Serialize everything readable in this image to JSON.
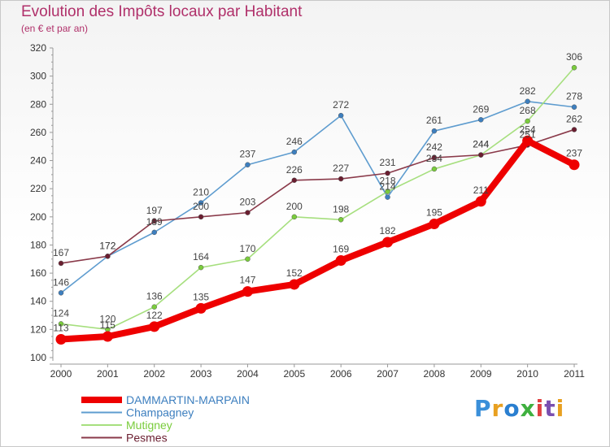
{
  "header": {
    "title": "Evolution des Impôts locaux par Habitant",
    "subtitle": "(en € et par an)"
  },
  "brand": {
    "text": "Proxiti",
    "letters": [
      "P",
      "r",
      "o",
      "x",
      "i",
      "t",
      "i"
    ],
    "colors": [
      "#3a8fd9",
      "#e8a020",
      "#2a7fd0",
      "#3fb03f",
      "#e04040",
      "#7a4fb0",
      "#e8a020"
    ]
  },
  "chart_data": {
    "type": "line",
    "title": "Evolution des Impôts locaux par Habitant",
    "subtitle": "(en € et par an)",
    "xlabel": "",
    "ylabel": "",
    "x": [
      "2000",
      "2001",
      "2002",
      "2003",
      "2004",
      "2005",
      "2006",
      "2007",
      "2008",
      "2009",
      "2010",
      "2011"
    ],
    "ylim": [
      100,
      320
    ],
    "yticks": [
      100,
      120,
      140,
      160,
      180,
      200,
      220,
      240,
      260,
      280,
      300,
      320
    ],
    "grid": false,
    "legend_position": "bottom-left",
    "series": [
      {
        "name": "Champagney",
        "color": "#5e9ccf",
        "point_color": "#3d7fbf",
        "labels": [
          "146",
          "172",
          "189",
          "210",
          "237",
          "246",
          "272",
          "214",
          "261",
          "269",
          "282",
          "278"
        ],
        "values": [
          146,
          172,
          189,
          210,
          237,
          246,
          272,
          214,
          261,
          269,
          282,
          278
        ]
      },
      {
        "name": "Mutigney",
        "color": "#a6df7e",
        "point_color": "#7acc3c",
        "labels": [
          "124",
          "120",
          "136",
          "164",
          "170",
          "200",
          "198",
          "218",
          "234",
          "244",
          "268",
          "306"
        ],
        "values": [
          124,
          120,
          136,
          164,
          170,
          200,
          198,
          218,
          234,
          244,
          268,
          306
        ]
      },
      {
        "name": "Pesmes",
        "color": "#8a3a4a",
        "point_color": "#6a1e30",
        "labels": [
          "167",
          "172",
          "197",
          "200",
          "203",
          "226",
          "227",
          "231",
          "242",
          "244",
          "251",
          "262"
        ],
        "values": [
          167,
          172,
          197,
          200,
          203,
          226,
          227,
          231,
          242,
          244,
          251,
          262
        ]
      },
      {
        "name": "DAMMARTIN-MARPAIN",
        "color": "#ee0000",
        "point_color": "#ee0000",
        "labels": [
          "113",
          "115",
          "122",
          "135",
          "147",
          "152",
          "169",
          "182",
          "195",
          "211",
          "254",
          "237"
        ],
        "values": [
          113,
          115,
          122,
          135,
          147,
          152,
          169,
          182,
          195,
          211,
          254,
          237
        ]
      }
    ],
    "legend": [
      "DAMMARTIN-MARPAIN",
      "Champagney",
      "Mutigney",
      "Pesmes"
    ]
  }
}
